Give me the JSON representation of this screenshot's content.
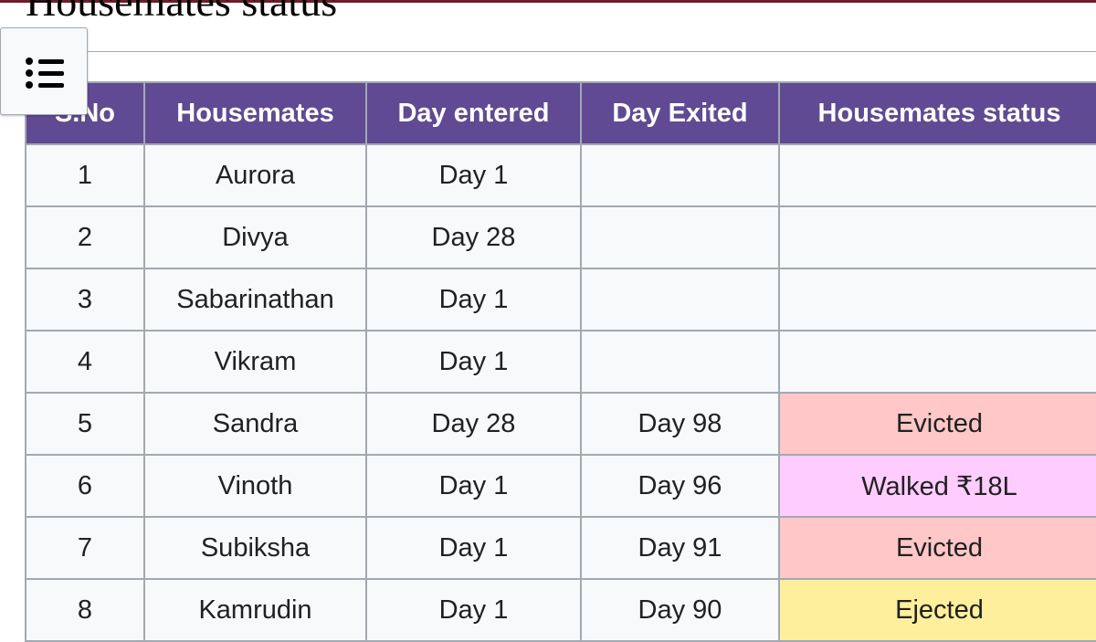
{
  "section": {
    "title": "Housemates status"
  },
  "toc": {
    "icon": "list-icon"
  },
  "table": {
    "headers": [
      "S.No",
      "Housemates",
      "Day entered",
      "Day Exited",
      "Housemates status"
    ],
    "rows": [
      {
        "sno": "1",
        "name": "Aurora",
        "entered": "Day 1",
        "exited": "",
        "status": ""
      },
      {
        "sno": "2",
        "name": "Divya",
        "entered": "Day 28",
        "exited": "",
        "status": ""
      },
      {
        "sno": "3",
        "name": "Sabarinathan",
        "entered": "Day 1",
        "exited": "",
        "status": ""
      },
      {
        "sno": "4",
        "name": "Vikram",
        "entered": "Day 1",
        "exited": "",
        "status": ""
      },
      {
        "sno": "5",
        "name": "Sandra",
        "entered": "Day 28",
        "exited": "Day 98",
        "status": "Evicted"
      },
      {
        "sno": "6",
        "name": "Vinoth",
        "entered": "Day 1",
        "exited": "Day 96",
        "status": "Walked ₹18L"
      },
      {
        "sno": "7",
        "name": "Subiksha",
        "entered": "Day 1",
        "exited": "Day 91",
        "status": "Evicted"
      },
      {
        "sno": "8",
        "name": "Kamrudin",
        "entered": "Day 1",
        "exited": "Day 90",
        "status": "Ejected"
      }
    ]
  },
  "colors": {
    "header_bg": "#604a93",
    "evicted": "#ffc7c7",
    "walked": "#ffccff",
    "ejected": "#feef9c"
  }
}
